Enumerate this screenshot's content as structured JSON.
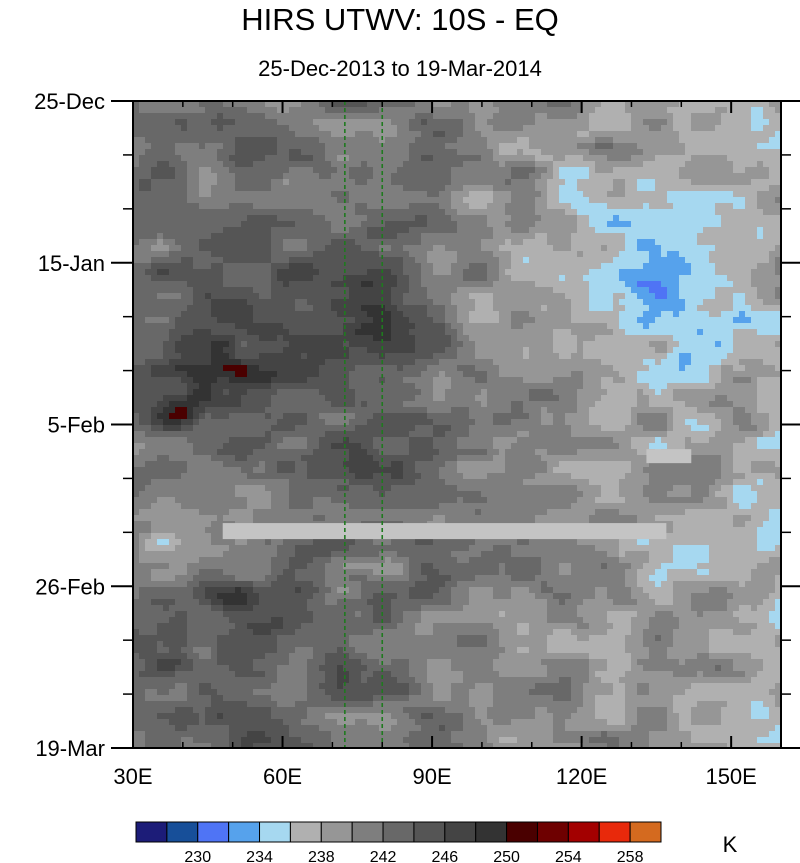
{
  "chart_data": {
    "type": "heatmap",
    "title": "HIRS UTWV: 10S - EQ",
    "subtitle": "25-Dec-2013 to 19-Mar-2014",
    "xlabel": "",
    "ylabel": "",
    "x_range": [
      30,
      160
    ],
    "y_range_days": [
      0,
      84
    ],
    "x_ticks": [
      {
        "value": 30,
        "label": "30E"
      },
      {
        "value": 60,
        "label": "60E"
      },
      {
        "value": 90,
        "label": "90E"
      },
      {
        "value": 120,
        "label": "120E"
      },
      {
        "value": 150,
        "label": "150E"
      }
    ],
    "y_ticks": [
      {
        "day": 0,
        "label": "25-Dec"
      },
      {
        "day": 21,
        "label": "15-Jan"
      },
      {
        "day": 42,
        "label": "5-Feb"
      },
      {
        "day": 63,
        "label": "26-Feb"
      },
      {
        "day": 84,
        "label": "19-Mar"
      }
    ],
    "reference_lines_lon": [
      72.5,
      80
    ],
    "colorbar": {
      "unit": "K",
      "levels": [
        228,
        230,
        232,
        234,
        236,
        238,
        240,
        242,
        244,
        246,
        248,
        250,
        252,
        254,
        256,
        258,
        260
      ],
      "labels": [
        "230",
        "234",
        "238",
        "242",
        "246",
        "250",
        "254",
        "258"
      ],
      "colors": [
        "#1c1c78",
        "#174f99",
        "#4f74f5",
        "#56a2ec",
        "#a6d8f0",
        "#b0b0b0",
        "#969696",
        "#7e7e7e",
        "#686868",
        "#555555",
        "#444444",
        "#333333",
        "#4a0000",
        "#6e0000",
        "#a30000",
        "#e8290b",
        "#d46a1f"
      ]
    },
    "missing_data_color": "#c4c4c4"
  }
}
